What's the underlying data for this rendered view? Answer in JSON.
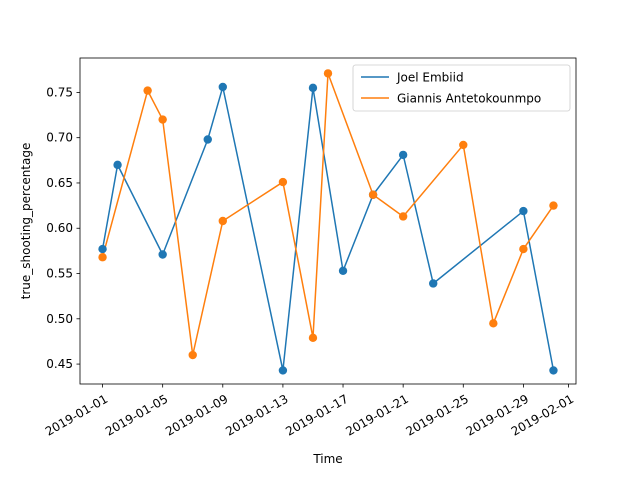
{
  "chart_data": {
    "type": "line",
    "xlabel": "Time",
    "ylabel": "true_shooting_percentage",
    "x_type": "date",
    "xlim": [
      "2018-12-30T12:00",
      "2019-02-01T12:00"
    ],
    "ylim": [
      0.428,
      0.788
    ],
    "x_ticks": [
      "2019-01-01",
      "2019-01-05",
      "2019-01-09",
      "2019-01-13",
      "2019-01-17",
      "2019-01-21",
      "2019-01-25",
      "2019-01-29",
      "2019-02-01"
    ],
    "y_ticks": [
      0.45,
      0.5,
      0.55,
      0.6,
      0.65,
      0.7,
      0.75
    ],
    "y_tick_labels": [
      "0.45",
      "0.50",
      "0.55",
      "0.60",
      "0.65",
      "0.70",
      "0.75"
    ],
    "legend": {
      "position": "top-right"
    },
    "grid": false,
    "markers": true,
    "series": [
      {
        "name": "Joel Embiid",
        "color": "#1f77b4",
        "points": [
          {
            "x": "2019-01-01",
            "y": 0.577
          },
          {
            "x": "2019-01-02",
            "y": 0.67
          },
          {
            "x": "2019-01-05",
            "y": 0.571
          },
          {
            "x": "2019-01-08",
            "y": 0.698
          },
          {
            "x": "2019-01-09",
            "y": 0.756
          },
          {
            "x": "2019-01-13",
            "y": 0.443
          },
          {
            "x": "2019-01-15",
            "y": 0.755
          },
          {
            "x": "2019-01-17",
            "y": 0.553
          },
          {
            "x": "2019-01-19",
            "y": 0.637
          },
          {
            "x": "2019-01-21",
            "y": 0.681
          },
          {
            "x": "2019-01-23",
            "y": 0.539
          },
          {
            "x": "2019-01-29",
            "y": 0.619
          },
          {
            "x": "2019-01-31",
            "y": 0.443
          }
        ]
      },
      {
        "name": "Giannis Antetokounmpo",
        "color": "#ff7f0e",
        "points": [
          {
            "x": "2019-01-01",
            "y": 0.568
          },
          {
            "x": "2019-01-04",
            "y": 0.752
          },
          {
            "x": "2019-01-05",
            "y": 0.72
          },
          {
            "x": "2019-01-07",
            "y": 0.46
          },
          {
            "x": "2019-01-09",
            "y": 0.608
          },
          {
            "x": "2019-01-13",
            "y": 0.651
          },
          {
            "x": "2019-01-15",
            "y": 0.479
          },
          {
            "x": "2019-01-16",
            "y": 0.771
          },
          {
            "x": "2019-01-19",
            "y": 0.637
          },
          {
            "x": "2019-01-21",
            "y": 0.613
          },
          {
            "x": "2019-01-25",
            "y": 0.692
          },
          {
            "x": "2019-01-27",
            "y": 0.495
          },
          {
            "x": "2019-01-29",
            "y": 0.577
          },
          {
            "x": "2019-01-31",
            "y": 0.625
          }
        ]
      }
    ]
  }
}
